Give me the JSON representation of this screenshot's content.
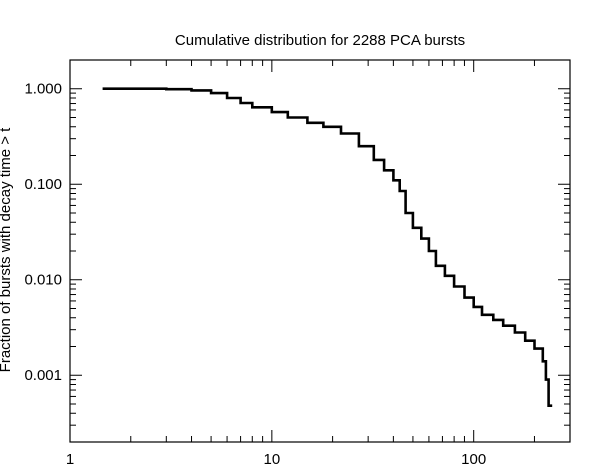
{
  "chart_data": {
    "type": "line",
    "title": "Cumulative distribution for 2288 PCA bursts",
    "xlabel": "",
    "ylabel": "Fraction of bursts with decay time > t",
    "x_scale": "log",
    "y_scale": "log",
    "xlim": [
      1,
      300
    ],
    "ylim": [
      0.0002,
      2.0
    ],
    "grid": false,
    "x_ticks": [
      {
        "value": 1,
        "label": "1"
      },
      {
        "value": 10,
        "label": "10"
      },
      {
        "value": 100,
        "label": "100"
      }
    ],
    "y_ticks": [
      {
        "value": 0.001,
        "label": "0.001"
      },
      {
        "value": 0.01,
        "label": "0.010"
      },
      {
        "value": 0.1,
        "label": "0.100"
      },
      {
        "value": 1.0,
        "label": "1.000"
      }
    ],
    "series": [
      {
        "color": "#000000",
        "points": [
          [
            1.45,
            1.0
          ],
          [
            2.0,
            1.0
          ],
          [
            3.0,
            0.99
          ],
          [
            4.0,
            0.96
          ],
          [
            5.0,
            0.9
          ],
          [
            6.0,
            0.8
          ],
          [
            7.0,
            0.71
          ],
          [
            8.0,
            0.64
          ],
          [
            10.0,
            0.57
          ],
          [
            12.0,
            0.5
          ],
          [
            15.0,
            0.44
          ],
          [
            18.0,
            0.4
          ],
          [
            22.0,
            0.34
          ],
          [
            27.0,
            0.25
          ],
          [
            32.0,
            0.18
          ],
          [
            36.0,
            0.14
          ],
          [
            40.0,
            0.11
          ],
          [
            43.0,
            0.085
          ],
          [
            46.0,
            0.05
          ],
          [
            50.0,
            0.035
          ],
          [
            55.0,
            0.027
          ],
          [
            60.0,
            0.02
          ],
          [
            65.0,
            0.014
          ],
          [
            72.0,
            0.011
          ],
          [
            80.0,
            0.0085
          ],
          [
            90.0,
            0.0065
          ],
          [
            100.0,
            0.0052
          ],
          [
            110.0,
            0.0043
          ],
          [
            125.0,
            0.0038
          ],
          [
            140.0,
            0.0033
          ],
          [
            160.0,
            0.0028
          ],
          [
            180.0,
            0.0023
          ],
          [
            200.0,
            0.0019
          ],
          [
            220.0,
            0.0014
          ],
          [
            228.0,
            0.0009
          ],
          [
            235.0,
            0.00048
          ],
          [
            245.0,
            0.00048
          ]
        ]
      }
    ]
  }
}
